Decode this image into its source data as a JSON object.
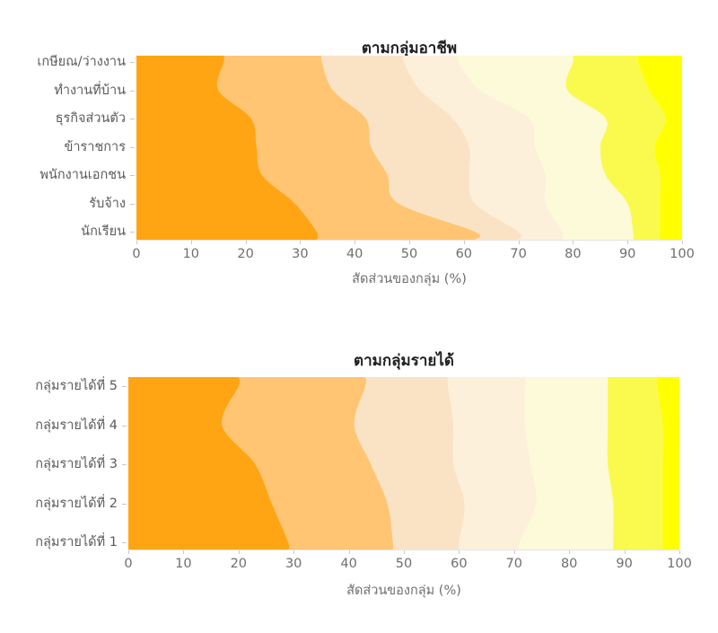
{
  "page": {
    "background": "#ffffff"
  },
  "palette": {
    "bands": [
      "#ffa413",
      "#ffc573",
      "#fae3c5",
      "#fdf0db",
      "#fcfad9",
      "#fafa4e",
      "#ffff00"
    ],
    "title_color": "#1f1f1f",
    "axis_text_color": "#6e6e6e",
    "y_label_color": "#5a5a5a",
    "tick_color": "#c9c9c9",
    "axis_line_color": "#e4e4e4"
  },
  "chart_data": [
    {
      "type": "area",
      "subtype": "horizontal-stacked-percentage-smoothed",
      "title": "ตามกลุ่มอาชีพ",
      "xlabel": "สัดส่วนของกลุ่ม (%)",
      "x_range": [
        0,
        100
      ],
      "x_ticks": [
        0,
        10,
        20,
        30,
        40,
        50,
        60,
        70,
        80,
        90,
        100
      ],
      "grid": false,
      "legend": false,
      "categories": [
        "เกษียณ/ว่างงาน",
        "ทำงานที่บ้าน",
        "ธุรกิจส่วนตัว",
        "ข้าราชการ",
        "พนักงานเอกชน",
        "รับจ้าง",
        "นักเรียน"
      ],
      "band_colors": [
        "#ffa413",
        "#ffc573",
        "#fae3c5",
        "#fdf0db",
        "#fcfad9",
        "#fafa4e",
        "#ffff00"
      ],
      "cumulative_boundaries_pct": [
        [
          16,
          34,
          49,
          59,
          80,
          92
        ],
        [
          15,
          36,
          52,
          63,
          79,
          94
        ],
        [
          21,
          42,
          58,
          72,
          86,
          97
        ],
        [
          22,
          43,
          61,
          73,
          85,
          95
        ],
        [
          23,
          46,
          61,
          75,
          86,
          96
        ],
        [
          29,
          48,
          62,
          75,
          90,
          96
        ],
        [
          33,
          62,
          70,
          78,
          91,
          96
        ]
      ]
    },
    {
      "type": "area",
      "subtype": "horizontal-stacked-percentage-smoothed",
      "title": "ตามกลุ่มรายได้",
      "xlabel": "สัดส่วนของกลุ่ม (%)",
      "x_range": [
        0,
        100
      ],
      "x_ticks": [
        0,
        10,
        20,
        30,
        40,
        50,
        60,
        70,
        80,
        90,
        100
      ],
      "grid": false,
      "legend": false,
      "categories": [
        "กลุ่มรายได้ที่ 5",
        "กลุ่มรายได้ที่ 4",
        "กลุ่มรายได้ที่ 3",
        "กลุ่มรายได้ที่ 2",
        "กลุ่มรายได้ที่ 1"
      ],
      "band_colors": [
        "#ffa413",
        "#ffc573",
        "#fae3c5",
        "#fdf0db",
        "#fcfad9",
        "#fafa4e",
        "#ffff00"
      ],
      "cumulative_boundaries_pct": [
        [
          20,
          43,
          58,
          72,
          87,
          96
        ],
        [
          17,
          41,
          59,
          72,
          87,
          97
        ],
        [
          23,
          44,
          59,
          73,
          87,
          97
        ],
        [
          26,
          47,
          61,
          74,
          88,
          97
        ],
        [
          29,
          48,
          60,
          71,
          88,
          97
        ]
      ]
    }
  ]
}
